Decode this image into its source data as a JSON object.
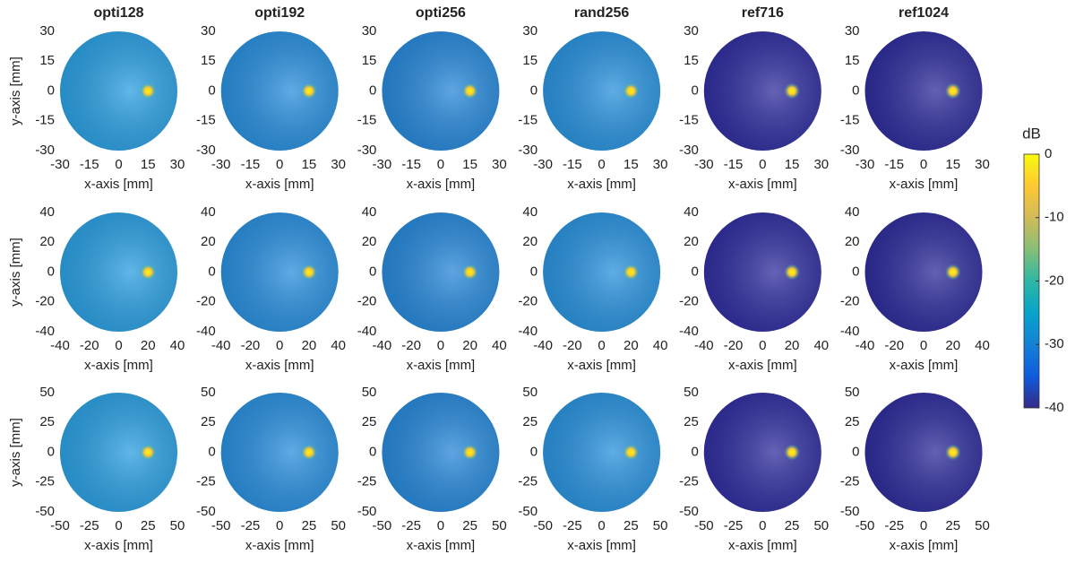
{
  "chart_data": [
    {
      "type": "image",
      "title": "opti128",
      "xlabel": "x-axis [mm]",
      "ylabel": "y-axis [mm]",
      "xlim": [
        -30,
        30
      ],
      "ylim": [
        -30,
        30
      ],
      "xticks": [
        -30,
        -15,
        0,
        15,
        30
      ],
      "yticks": [
        30,
        15,
        0,
        -15,
        -30
      ],
      "focus_x": 15,
      "focus_y": 0,
      "color": "#2c9fe0"
    },
    {
      "type": "image",
      "title": "opti192",
      "xlabel": "x-axis [mm]",
      "xlim": [
        -30,
        30
      ],
      "ylim": [
        -30,
        30
      ],
      "xticks": [
        -30,
        -15,
        0,
        15,
        30
      ],
      "yticks": [
        30,
        15,
        0,
        -15,
        -30
      ],
      "focus_x": 15,
      "focus_y": 0,
      "color": "#2a8fdc"
    },
    {
      "type": "image",
      "title": "opti256",
      "xlabel": "x-axis [mm]",
      "xlim": [
        -30,
        30
      ],
      "ylim": [
        -30,
        30
      ],
      "xticks": [
        -30,
        -15,
        0,
        15,
        30
      ],
      "yticks": [
        30,
        15,
        0,
        -15,
        -30
      ],
      "focus_x": 15,
      "focus_y": 0,
      "color": "#2888d8"
    },
    {
      "type": "image",
      "title": "rand256",
      "xlabel": "x-axis [mm]",
      "xlim": [
        -30,
        30
      ],
      "ylim": [
        -30,
        30
      ],
      "xticks": [
        -30,
        -15,
        0,
        15,
        30
      ],
      "yticks": [
        30,
        15,
        0,
        -15,
        -30
      ],
      "focus_x": 15,
      "focus_y": 0,
      "color": "#2a92dc"
    },
    {
      "type": "image",
      "title": "ref716",
      "xlabel": "x-axis [mm]",
      "xlim": [
        -30,
        30
      ],
      "ylim": [
        -30,
        30
      ],
      "xticks": [
        -30,
        -15,
        0,
        15,
        30
      ],
      "yticks": [
        30,
        15,
        0,
        -15,
        -30
      ],
      "focus_x": 15,
      "focus_y": 0,
      "color": "#302f9e"
    },
    {
      "type": "image",
      "title": "ref1024",
      "xlabel": "x-axis [mm]",
      "xlim": [
        -30,
        30
      ],
      "ylim": [
        -30,
        30
      ],
      "xticks": [
        -30,
        -15,
        0,
        15,
        30
      ],
      "yticks": [
        30,
        15,
        0,
        -15,
        -30
      ],
      "focus_x": 15,
      "focus_y": 0,
      "color": "#2e2d9a"
    },
    {
      "type": "image",
      "xlabel": "x-axis [mm]",
      "ylabel": "y-axis [mm]",
      "xlim": [
        -40,
        40
      ],
      "ylim": [
        -40,
        40
      ],
      "xticks": [
        -40,
        -20,
        0,
        20,
        40
      ],
      "yticks": [
        40,
        20,
        0,
        -20,
        -40
      ],
      "focus_x": 20,
      "focus_y": 0,
      "color": "#2c9fe0"
    },
    {
      "type": "image",
      "xlabel": "x-axis [mm]",
      "xlim": [
        -40,
        40
      ],
      "ylim": [
        -40,
        40
      ],
      "xticks": [
        -40,
        -20,
        0,
        20,
        40
      ],
      "yticks": [
        40,
        20,
        0,
        -20,
        -40
      ],
      "focus_x": 20,
      "focus_y": 0,
      "color": "#2a8fdc"
    },
    {
      "type": "image",
      "xlabel": "x-axis [mm]",
      "xlim": [
        -40,
        40
      ],
      "ylim": [
        -40,
        40
      ],
      "xticks": [
        -40,
        -20,
        0,
        20,
        40
      ],
      "yticks": [
        40,
        20,
        0,
        -20,
        -40
      ],
      "focus_x": 20,
      "focus_y": 0,
      "color": "#2888d8"
    },
    {
      "type": "image",
      "xlabel": "x-axis [mm]",
      "xlim": [
        -40,
        40
      ],
      "ylim": [
        -40,
        40
      ],
      "xticks": [
        -40,
        -20,
        0,
        20,
        40
      ],
      "yticks": [
        40,
        20,
        0,
        -20,
        -40
      ],
      "focus_x": 20,
      "focus_y": 0,
      "color": "#2a92dc"
    },
    {
      "type": "image",
      "xlabel": "x-axis [mm]",
      "xlim": [
        -40,
        40
      ],
      "ylim": [
        -40,
        40
      ],
      "xticks": [
        -40,
        -20,
        0,
        20,
        40
      ],
      "yticks": [
        40,
        20,
        0,
        -20,
        -40
      ],
      "focus_x": 20,
      "focus_y": 0,
      "color": "#302f9e"
    },
    {
      "type": "image",
      "xlabel": "x-axis [mm]",
      "xlim": [
        -40,
        40
      ],
      "ylim": [
        -40,
        40
      ],
      "xticks": [
        -40,
        -20,
        0,
        20,
        40
      ],
      "yticks": [
        40,
        20,
        0,
        -20,
        -40
      ],
      "focus_x": 20,
      "focus_y": 0,
      "color": "#2e2d9a"
    },
    {
      "type": "image",
      "xlabel": "x-axis [mm]",
      "ylabel": "y-axis [mm]",
      "xlim": [
        -50,
        50
      ],
      "ylim": [
        -50,
        50
      ],
      "xticks": [
        -50,
        -25,
        0,
        25,
        50
      ],
      "yticks": [
        50,
        25,
        0,
        -25,
        -50
      ],
      "focus_x": 25,
      "focus_y": 0,
      "color": "#2c9fe0"
    },
    {
      "type": "image",
      "xlabel": "x-axis [mm]",
      "xlim": [
        -50,
        50
      ],
      "ylim": [
        -50,
        50
      ],
      "xticks": [
        -50,
        -25,
        0,
        25,
        50
      ],
      "yticks": [
        50,
        25,
        0,
        -25,
        -50
      ],
      "focus_x": 25,
      "focus_y": 0,
      "color": "#2a8fdc"
    },
    {
      "type": "image",
      "xlabel": "x-axis [mm]",
      "xlim": [
        -50,
        50
      ],
      "ylim": [
        -50,
        50
      ],
      "xticks": [
        -50,
        -25,
        0,
        25,
        50
      ],
      "yticks": [
        50,
        25,
        0,
        -25,
        -50
      ],
      "focus_x": 25,
      "focus_y": 0,
      "color": "#2888d8"
    },
    {
      "type": "image",
      "xlabel": "x-axis [mm]",
      "xlim": [
        -50,
        50
      ],
      "ylim": [
        -50,
        50
      ],
      "xticks": [
        -50,
        -25,
        0,
        25,
        50
      ],
      "yticks": [
        50,
        25,
        0,
        -25,
        -50
      ],
      "focus_x": 25,
      "focus_y": 0,
      "color": "#2a92dc"
    },
    {
      "type": "image",
      "xlabel": "x-axis [mm]",
      "xlim": [
        -50,
        50
      ],
      "ylim": [
        -50,
        50
      ],
      "xticks": [
        -50,
        -25,
        0,
        25,
        50
      ],
      "yticks": [
        50,
        25,
        0,
        -25,
        -50
      ],
      "focus_x": 25,
      "focus_y": 0,
      "color": "#302f9e"
    },
    {
      "type": "image",
      "xlabel": "x-axis [mm]",
      "xlim": [
        -50,
        50
      ],
      "ylim": [
        -50,
        50
      ],
      "xticks": [
        -50,
        -25,
        0,
        25,
        50
      ],
      "yticks": [
        50,
        25,
        0,
        -25,
        -50
      ],
      "focus_x": 25,
      "focus_y": 0,
      "color": "#2e2d9a"
    },
    {
      "type": "colorbar",
      "label": "dB",
      "ylim": [
        -40,
        0
      ],
      "yticks": [
        0,
        -10,
        -20,
        -30,
        -40
      ],
      "colors": [
        "#352a87",
        "#0f5cdd",
        "#1481d6",
        "#06a4ca",
        "#2eb7a4",
        "#87bf77",
        "#d1bb59",
        "#fec832",
        "#f9fb0e"
      ]
    }
  ]
}
